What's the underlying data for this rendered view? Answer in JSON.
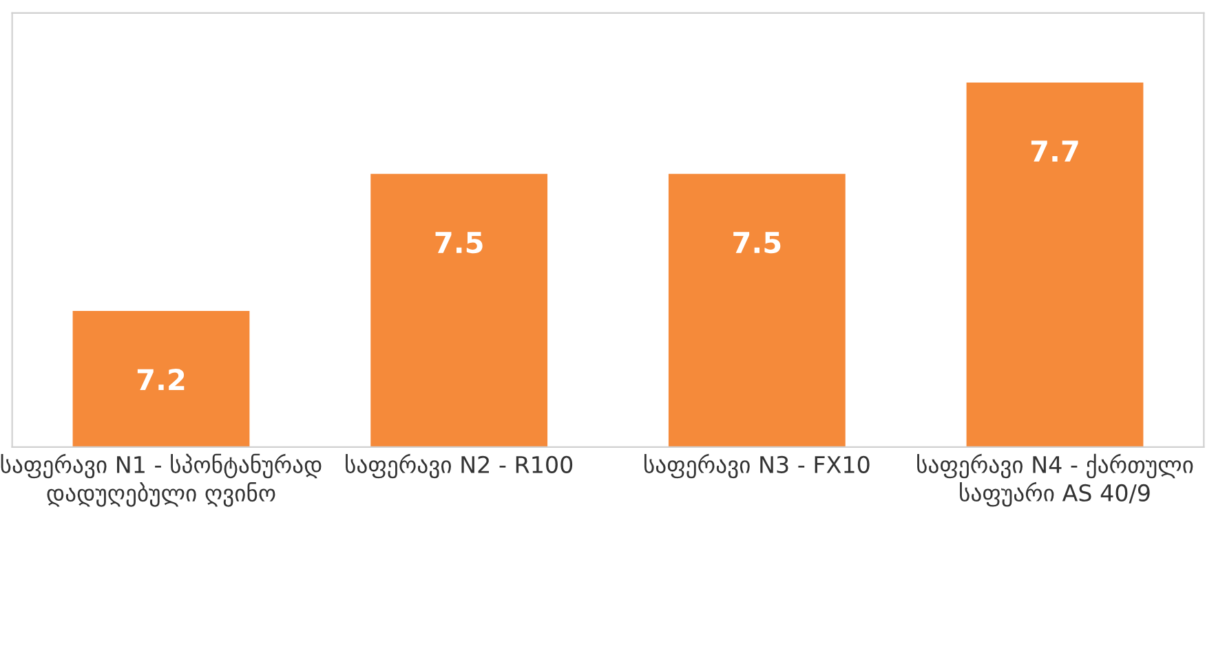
{
  "chart_data": {
    "type": "bar",
    "categories": [
      "საფერავი N1 - სპონტანურად დადუღებული ღვინო",
      "საფერავი N2 - R100",
      "საფერავი N3 - FX10",
      "საფერავი N4 - ქართული საფუარი AS 40/9"
    ],
    "values": [
      7.2,
      7.5,
      7.5,
      7.7
    ],
    "color": "#f58a3a",
    "ylim": [
      6.9,
      7.85
    ],
    "data_labels": true,
    "tick_labels": "x",
    "grid": false
  }
}
